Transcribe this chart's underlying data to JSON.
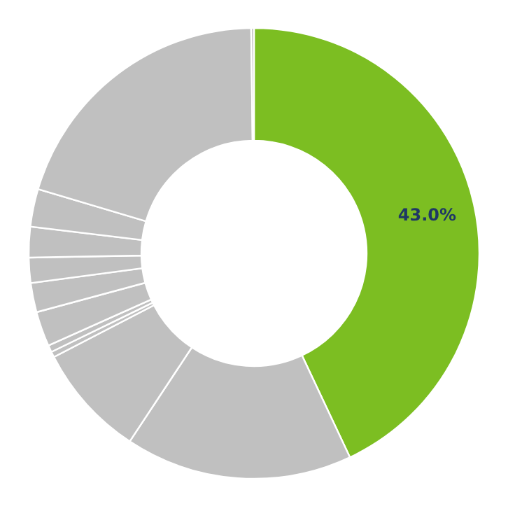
{
  "chart_data": {
    "type": "donut",
    "categories": [
      null,
      null,
      null,
      null,
      null,
      null,
      null,
      null,
      null,
      null,
      null,
      null
    ],
    "values": [
      43.0,
      16.3,
      8.1,
      0.4,
      0.5,
      2.5,
      2.1,
      1.8,
      2.2,
      2.7,
      20.2,
      0.2
    ],
    "colors": [
      "#7cbe22",
      "#c0c0c0",
      "#c0c0c0",
      "#c0c0c0",
      "#c0c0c0",
      "#c0c0c0",
      "#c0c0c0",
      "#c0c0c0",
      "#c0c0c0",
      "#c0c0c0",
      "#c0c0c0",
      "#c0c0c0"
    ],
    "value_labels": [
      "43.0%",
      null,
      null,
      null,
      null,
      null,
      null,
      null,
      null,
      null,
      null,
      null
    ],
    "legend": false
  }
}
